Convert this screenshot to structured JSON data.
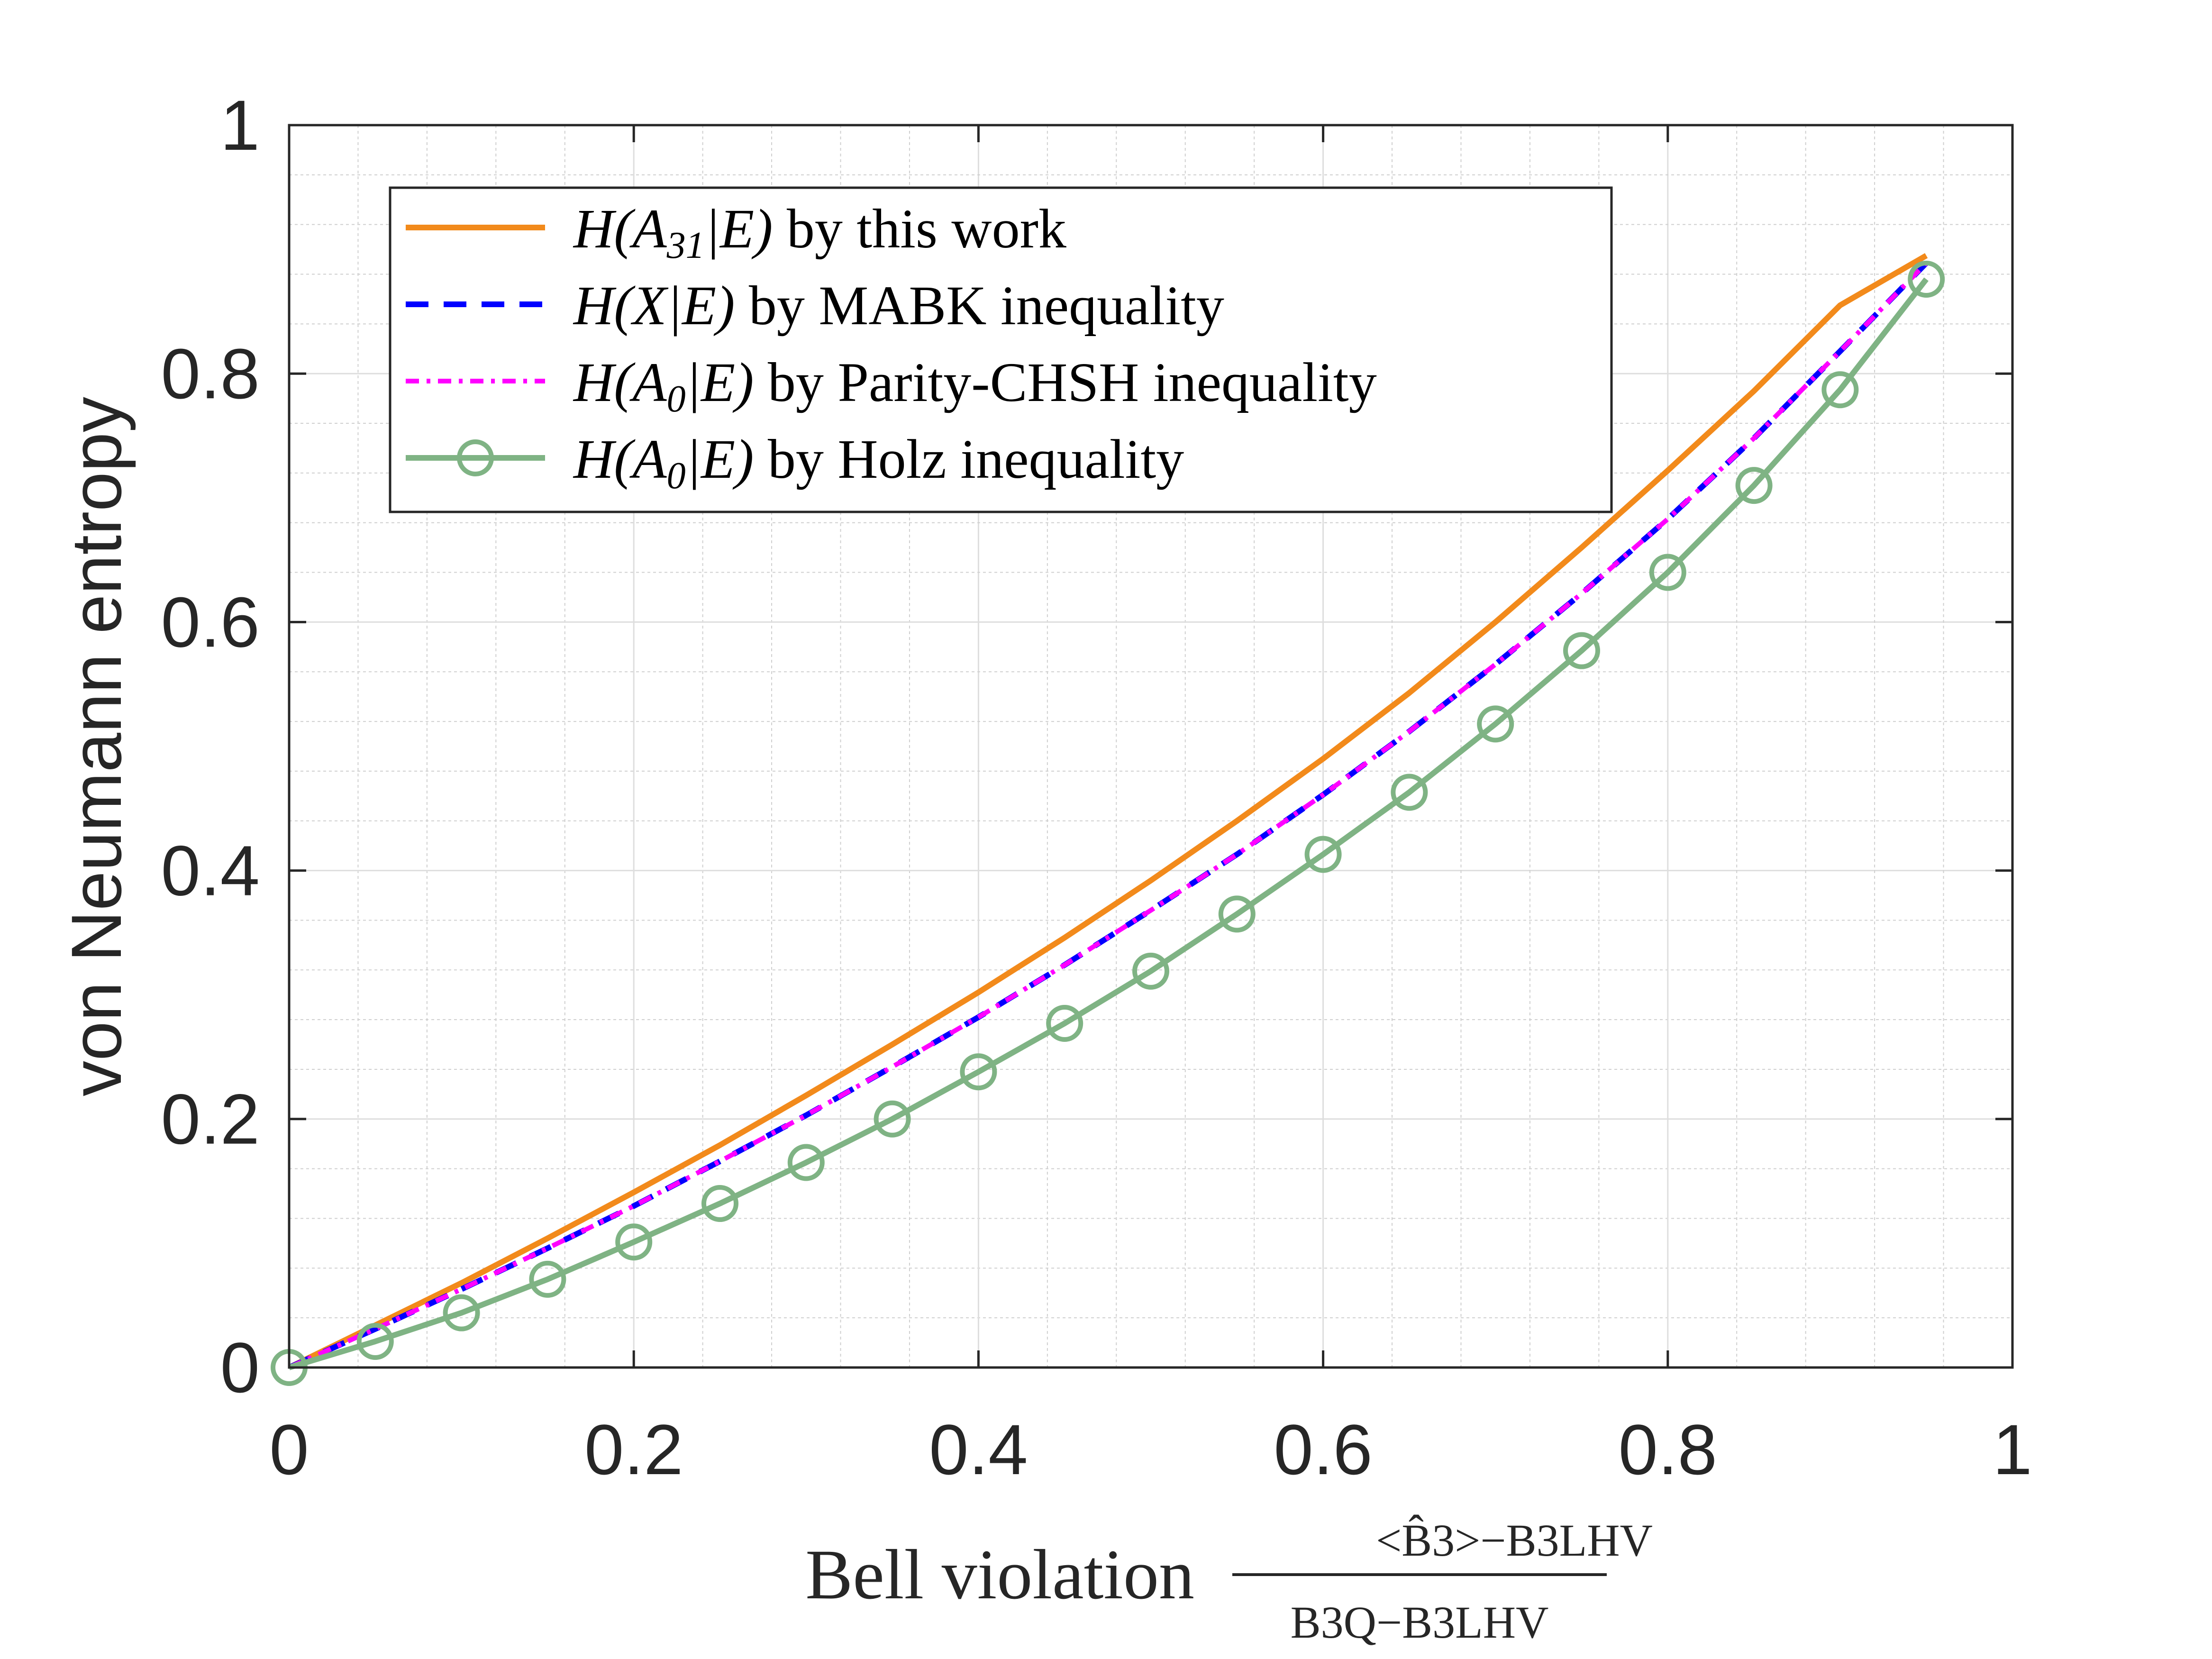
{
  "chart_data": {
    "type": "line",
    "title": "",
    "xlabel": "Bell violation",
    "xlabel_fraction": {
      "numerator": "<B̂3>−B3LHV",
      "denominator": "B3Q−B3LHV"
    },
    "ylabel": "von Neumann entropy",
    "xlim": [
      0,
      1
    ],
    "ylim": [
      0,
      1
    ],
    "xticks": [
      "0",
      "0.2",
      "0.4",
      "0.6",
      "0.8",
      "1"
    ],
    "yticks": [
      "0",
      "0.2",
      "0.4",
      "0.6",
      "0.8",
      "1"
    ],
    "grid": true,
    "minor_grid": true,
    "legend_position": "top-left",
    "x": [
      0,
      0.05,
      0.1,
      0.15,
      0.2,
      0.25,
      0.3,
      0.35,
      0.4,
      0.45,
      0.5,
      0.55,
      0.6,
      0.65,
      0.7,
      0.75,
      0.8,
      0.85,
      0.9,
      0.95
    ],
    "series": [
      {
        "name": "H(A31|E) by this work",
        "style": "solid",
        "color": "#F28A1B",
        "values": [
          0,
          0.034,
          0.068,
          0.104,
          0.141,
          0.179,
          0.219,
          0.26,
          0.302,
          0.346,
          0.392,
          0.44,
          0.49,
          0.543,
          0.6,
          0.66,
          0.722,
          0.786,
          0.855,
          0.895
        ]
      },
      {
        "name": "H(X|E) by MABK inequality",
        "style": "dashed",
        "color": "#0000FF",
        "values": [
          0,
          0.031,
          0.063,
          0.096,
          0.13,
          0.166,
          0.203,
          0.242,
          0.282,
          0.324,
          0.368,
          0.413,
          0.461,
          0.512,
          0.566,
          0.623,
          0.683,
          0.748,
          0.818,
          0.889
        ]
      },
      {
        "name": "H(A0|E) by Parity-CHSH inequality",
        "style": "dash-dot",
        "color": "#FF00FF",
        "values": [
          0,
          0.031,
          0.063,
          0.096,
          0.13,
          0.166,
          0.203,
          0.242,
          0.282,
          0.324,
          0.368,
          0.413,
          0.461,
          0.512,
          0.566,
          0.623,
          0.683,
          0.748,
          0.818,
          0.889
        ]
      },
      {
        "name": "H(A0|E) by Holz inequality",
        "style": "solid-circle",
        "color": "#7FB384",
        "values": [
          0,
          0.021,
          0.044,
          0.071,
          0.101,
          0.132,
          0.165,
          0.2,
          0.238,
          0.277,
          0.319,
          0.365,
          0.413,
          0.463,
          0.518,
          0.577,
          0.64,
          0.71,
          0.787,
          0.876
        ]
      }
    ],
    "legend": [
      {
        "label": "by this work",
        "math_main": "H(A",
        "math_sub": "31",
        "math_tail": "|E)"
      },
      {
        "label": "by MABK inequality",
        "math_main": "H(X|E)",
        "math_sub": "",
        "math_tail": ""
      },
      {
        "label": "by Parity-CHSH inequality",
        "math_main": "H(A",
        "math_sub": "0",
        "math_tail": "|E)"
      },
      {
        "label": "by Holz inequality",
        "math_main": "H(A",
        "math_sub": "0",
        "math_tail": "|E)"
      }
    ]
  }
}
